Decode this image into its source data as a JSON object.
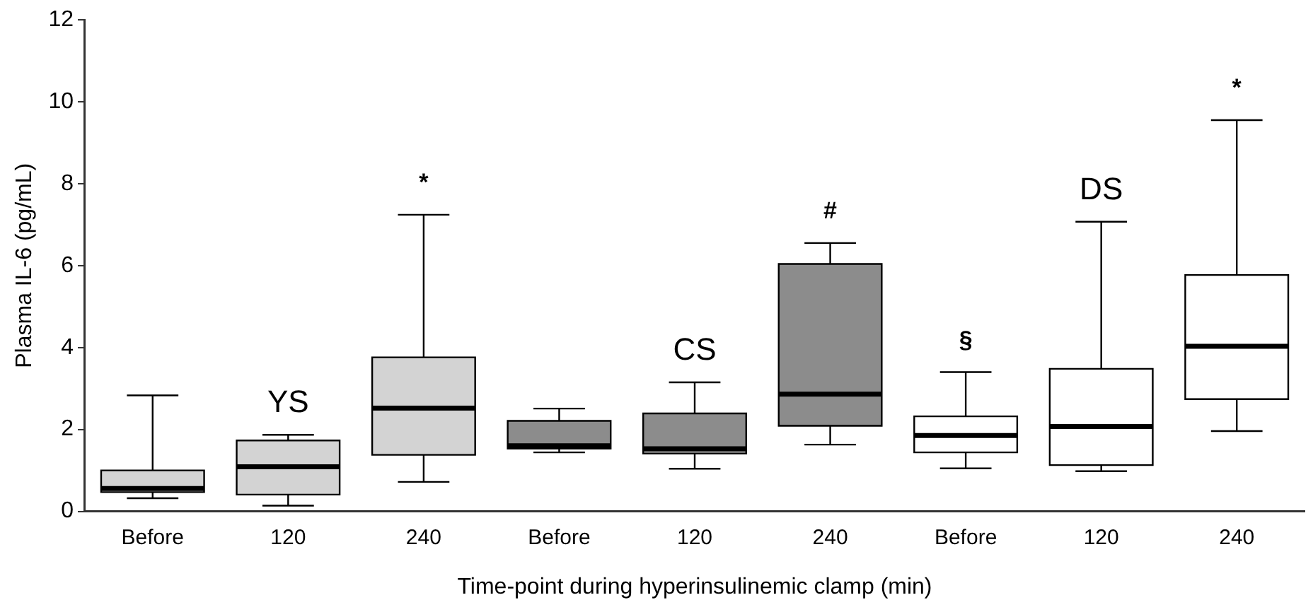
{
  "chart_data": {
    "type": "box",
    "xlabel": "Time-point during hyperinsulinemic clamp (min)",
    "ylabel": "Plasma IL-6 (pg/mL)",
    "categories": [
      "Before",
      "120",
      "240",
      "Before",
      "120",
      "240",
      "Before",
      "120",
      "240"
    ],
    "ylim": [
      0,
      12
    ],
    "yticks": [
      0,
      2,
      4,
      6,
      8,
      10,
      12
    ],
    "grid": false,
    "legend": false,
    "series": [
      {
        "name": "YS",
        "color": "#d3d3d3",
        "boxes": [
          {
            "low": 0.32,
            "q1": 0.47,
            "median": 0.56,
            "q3": 1.0,
            "high": 2.83
          },
          {
            "low": 0.14,
            "q1": 0.41,
            "median": 1.09,
            "q3": 1.73,
            "high": 1.87
          },
          {
            "low": 0.72,
            "q1": 1.38,
            "median": 2.52,
            "q3": 3.76,
            "high": 7.24
          },
          null,
          null,
          null,
          null,
          null,
          null
        ]
      },
      {
        "name": "CS",
        "color": "#8c8c8c",
        "boxes": [
          null,
          null,
          null,
          {
            "low": 1.44,
            "q1": 1.53,
            "median": 1.6,
            "q3": 2.21,
            "high": 2.51
          },
          {
            "low": 1.04,
            "q1": 1.41,
            "median": 1.53,
            "q3": 2.39,
            "high": 3.15
          },
          {
            "low": 1.63,
            "q1": 2.09,
            "median": 2.86,
            "q3": 6.04,
            "high": 6.55
          },
          null,
          null,
          null
        ]
      },
      {
        "name": "DS",
        "color": "#ffffff",
        "boxes": [
          null,
          null,
          null,
          null,
          null,
          null,
          {
            "low": 1.05,
            "q1": 1.44,
            "median": 1.85,
            "q3": 2.32,
            "high": 3.4
          },
          {
            "low": 0.98,
            "q1": 1.13,
            "median": 2.07,
            "q3": 3.48,
            "high": 7.07
          },
          {
            "low": 1.96,
            "q1": 2.74,
            "median": 4.03,
            "q3": 5.77,
            "high": 9.55
          }
        ]
      }
    ],
    "annotations": [
      "*",
      "#",
      "§",
      "*"
    ]
  }
}
